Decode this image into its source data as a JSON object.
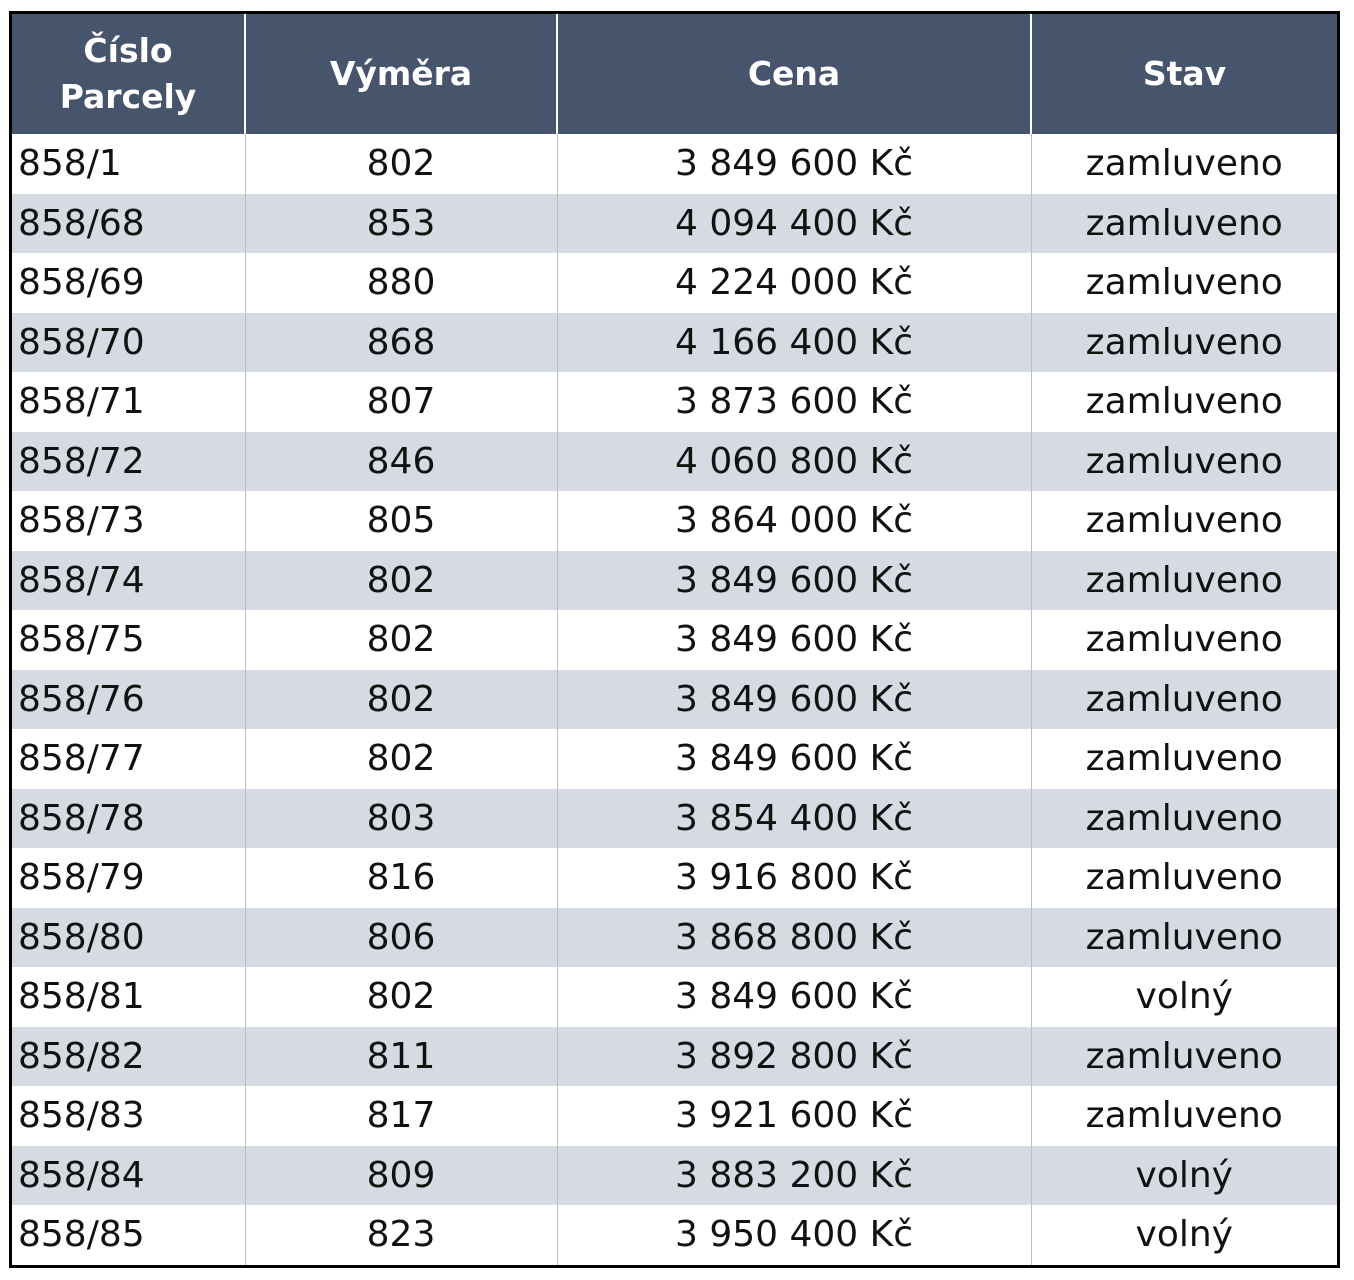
{
  "table": {
    "headers": [
      "Číslo\nParcely",
      "Výměra",
      "Cena",
      "Stav"
    ],
    "header_line1": "Číslo",
    "header_line2": "Parcely",
    "rows": [
      [
        "858/1",
        "802",
        "3 849 600 Kč",
        "zamluveno"
      ],
      [
        "858/68",
        "853",
        "4 094 400 Kč",
        "zamluveno"
      ],
      [
        "858/69",
        "880",
        "4 224 000 Kč",
        "zamluveno"
      ],
      [
        "858/70",
        "868",
        "4 166 400 Kč",
        "zamluveno"
      ],
      [
        "858/71",
        "807",
        "3 873 600 Kč",
        "zamluveno"
      ],
      [
        "858/72",
        "846",
        "4 060 800 Kč",
        "zamluveno"
      ],
      [
        "858/73",
        "805",
        "3 864 000 Kč",
        "zamluveno"
      ],
      [
        "858/74",
        "802",
        "3 849 600 Kč",
        "zamluveno"
      ],
      [
        "858/75",
        "802",
        "3 849 600 Kč",
        "zamluveno"
      ],
      [
        "858/76",
        "802",
        "3 849 600 Kč",
        "zamluveno"
      ],
      [
        "858/77",
        "802",
        "3 849 600 Kč",
        "zamluveno"
      ],
      [
        "858/78",
        "803",
        "3 854 400 Kč",
        "zamluveno"
      ],
      [
        "858/79",
        "816",
        "3 916 800 Kč",
        "zamluveno"
      ],
      [
        "858/80",
        "806",
        "3 868 800 Kč",
        "zamluveno"
      ],
      [
        "858/81",
        "802",
        "3 849 600 Kč",
        "volný"
      ],
      [
        "858/82",
        "811",
        "3 892 800 Kč",
        "zamluveno"
      ],
      [
        "858/83",
        "817",
        "3 921 600 Kč",
        "zamluveno"
      ],
      [
        "858/84",
        "809",
        "3 883 200 Kč",
        "volný"
      ],
      [
        "858/85",
        "823",
        "3 950 400 Kč",
        "volný"
      ]
    ]
  },
  "colors": {
    "header_bg": "#46546c",
    "header_text": "#ffffff",
    "row_stripe": "#d6dbe3",
    "row_plain": "#ffffff",
    "border": "#000000"
  }
}
